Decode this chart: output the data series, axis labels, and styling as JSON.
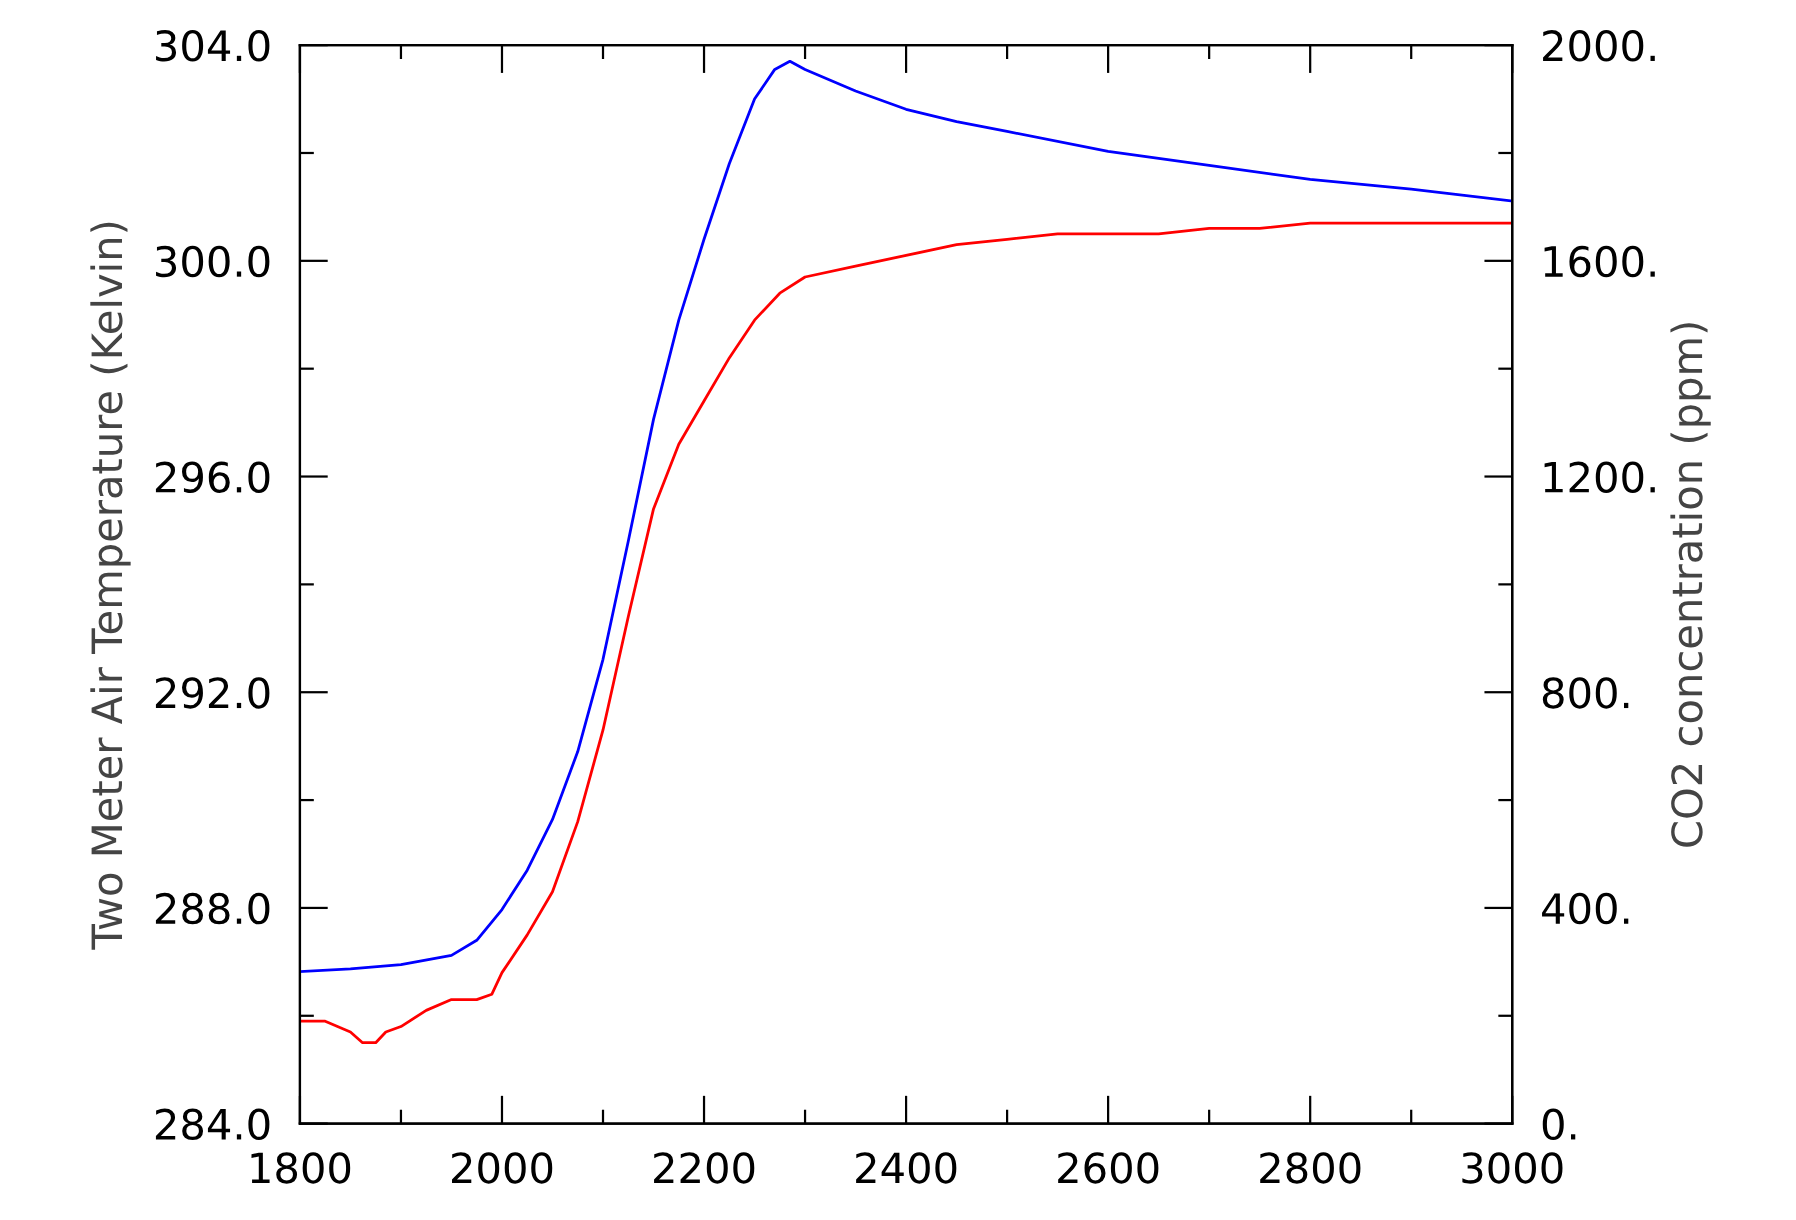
{
  "chart_data": {
    "type": "line",
    "ylabel": "Two Meter Air Temperature (Kelvin)",
    "y2label": "CO2 concentration (ppm)",
    "xlim": [
      1800,
      3000
    ],
    "xticks": [
      1800,
      {
        "value": 1900,
        "label": null
      },
      2000,
      {
        "value": 2100,
        "label": null
      },
      2200,
      {
        "value": 2300,
        "label": null
      },
      2400,
      {
        "value": 2500,
        "label": null
      },
      2600,
      {
        "value": 2700,
        "label": null
      },
      2800,
      {
        "value": 2900,
        "label": null
      },
      3000
    ],
    "ylim": [
      284,
      304
    ],
    "yticks": [
      {
        "value": 284,
        "label": "284.0"
      },
      {
        "value": 286,
        "label": null
      },
      {
        "value": 288,
        "label": "288.0"
      },
      {
        "value": 290,
        "label": null
      },
      {
        "value": 292,
        "label": "292.0"
      },
      {
        "value": 294,
        "label": null
      },
      {
        "value": 296,
        "label": "296.0"
      },
      {
        "value": 298,
        "label": null
      },
      {
        "value": 300,
        "label": "300.0"
      },
      {
        "value": 302,
        "label": null
      },
      {
        "value": 304,
        "label": "304.0"
      }
    ],
    "y2lim": [
      0,
      2000
    ],
    "y2ticks": [
      {
        "value": 0,
        "label": "0."
      },
      {
        "value": 200,
        "label": null
      },
      {
        "value": 400,
        "label": "400."
      },
      {
        "value": 600,
        "label": null
      },
      {
        "value": 800,
        "label": "800."
      },
      {
        "value": 1000,
        "label": null
      },
      {
        "value": 1200,
        "label": "1200."
      },
      {
        "value": 1400,
        "label": null
      },
      {
        "value": 1600,
        "label": "1600."
      },
      {
        "value": 1800,
        "label": null
      },
      {
        "value": 2000,
        "label": "2000."
      }
    ],
    "grid": false,
    "marker": "none",
    "line_style": "solid",
    "series": [
      {
        "color": "#ff0000",
        "x": [
          1800,
          1825,
          1850,
          1862,
          1875,
          1885,
          1900,
          1925,
          1950,
          1975,
          1990,
          2000,
          2025,
          2050,
          2075,
          2100,
          2125,
          2150,
          2175,
          2200,
          2225,
          2250,
          2275,
          2300,
          2350,
          2400,
          2450,
          2500,
          2550,
          2600,
          2650,
          2700,
          2750,
          2800,
          2850,
          2900,
          2950,
          3000
        ],
        "values": [
          285.9,
          285.9,
          285.7,
          285.5,
          285.5,
          285.7,
          285.8,
          286.1,
          286.3,
          286.3,
          286.4,
          286.8,
          287.5,
          288.3,
          289.6,
          291.3,
          293.4,
          295.4,
          296.6,
          297.4,
          298.2,
          298.9,
          299.4,
          299.7,
          299.9,
          300.1,
          300.3,
          300.4,
          300.5,
          300.5,
          300.5,
          300.6,
          300.6,
          300.7,
          300.7,
          300.7,
          300.7,
          300.7
        ]
      },
      {
        "color": "#0000ff",
        "axis": "y2",
        "x": [
          1800,
          1850,
          1900,
          1950,
          1975,
          2000,
          2025,
          2050,
          2075,
          2100,
          2125,
          2150,
          2175,
          2200,
          2225,
          2250,
          2270,
          2285,
          2300,
          2350,
          2400,
          2450,
          2500,
          2600,
          2700,
          2800,
          2900,
          3000
        ],
        "values": [
          282,
          287,
          295,
          312,
          340,
          397,
          470,
          564,
          690,
          861,
          1080,
          1306,
          1490,
          1640,
          1780,
          1900,
          1955,
          1970,
          1955,
          1915,
          1881,
          1858,
          1840,
          1803,
          1777,
          1751,
          1733,
          1711
        ]
      }
    ]
  }
}
